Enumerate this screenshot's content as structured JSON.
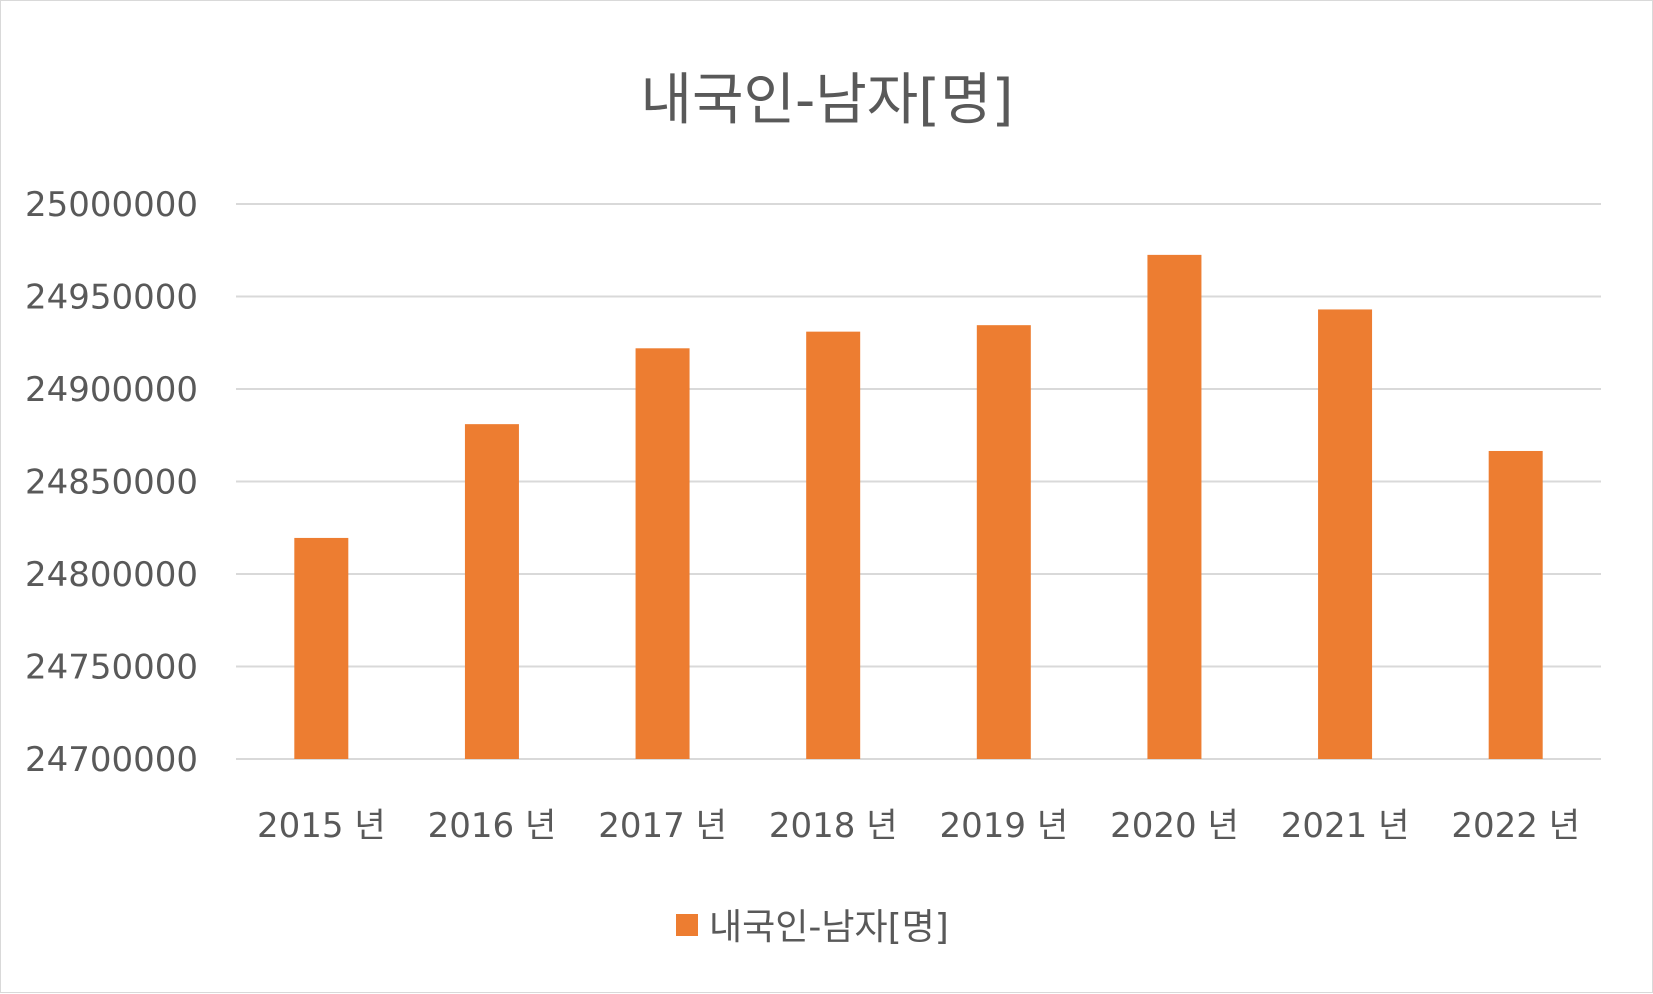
{
  "chart_data": {
    "type": "bar",
    "title": "내국인-남자[명]",
    "categories": [
      "2015 년",
      "2016 년",
      "2017 년",
      "2018 년",
      "2019 년",
      "2020 년",
      "2021 년",
      "2022 년"
    ],
    "series": [
      {
        "name": "내국인-남자[명]",
        "color": "#ED7D31",
        "values": [
          24819500,
          24881000,
          24922000,
          24931000,
          24934500,
          24972500,
          24943000,
          24866500
        ]
      }
    ],
    "ylim": [
      24700000,
      25000000
    ],
    "yticks": [
      "24700000",
      "24750000",
      "24800000",
      "24850000",
      "24900000",
      "24950000",
      "25000000"
    ],
    "ytick_values": [
      24700000,
      24750000,
      24800000,
      24850000,
      24900000,
      24950000,
      25000000
    ],
    "grid": true,
    "grid_color": "#d9d9d9",
    "legend_position": "bottom"
  }
}
